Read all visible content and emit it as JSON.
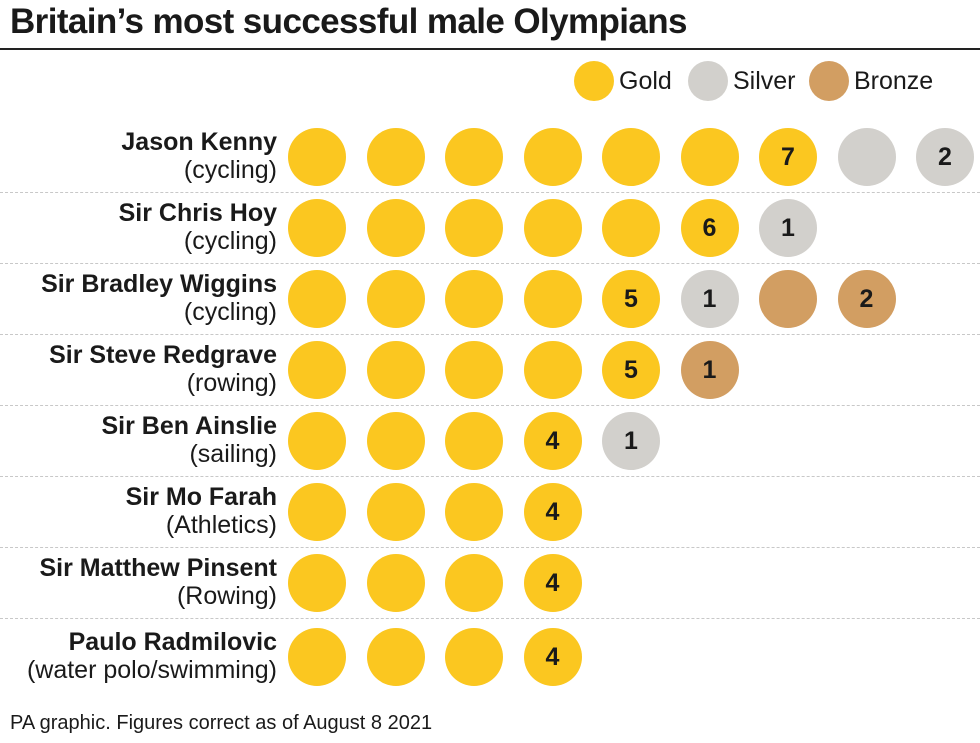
{
  "title": "Britain’s most successful male Olympians",
  "footer": "PA graphic. Figures correct as of August 8 2021",
  "colors": {
    "gold": "#fbc720",
    "silver": "#d2d0cc",
    "bronze": "#d29e62"
  },
  "legend": [
    {
      "key": "gold",
      "label": "Gold"
    },
    {
      "key": "silver",
      "label": "Silver"
    },
    {
      "key": "bronze",
      "label": "Bronze"
    }
  ],
  "chart_data": {
    "type": "table",
    "title": "Britain’s most successful male Olympians",
    "columns": [
      "Gold",
      "Silver",
      "Bronze"
    ],
    "rows": [
      {
        "name": "Jason Kenny",
        "sport": "(cycling)",
        "gold": 7,
        "silver": 2,
        "bronze": 0
      },
      {
        "name": "Sir Chris Hoy",
        "sport": "(cycling)",
        "gold": 6,
        "silver": 1,
        "bronze": 0
      },
      {
        "name": "Sir Bradley Wiggins",
        "sport": "(cycling)",
        "gold": 5,
        "silver": 1,
        "bronze": 2
      },
      {
        "name": "Sir Steve Redgrave",
        "sport": "(rowing)",
        "gold": 5,
        "silver": 0,
        "bronze": 1
      },
      {
        "name": "Sir Ben Ainslie",
        "sport": "(sailing)",
        "gold": 4,
        "silver": 1,
        "bronze": 0
      },
      {
        "name": "Sir Mo Farah",
        "sport": "(Athletics)",
        "gold": 4,
        "silver": 0,
        "bronze": 0
      },
      {
        "name": "Sir Matthew Pinsent",
        "sport": "(Rowing)",
        "gold": 4,
        "silver": 0,
        "bronze": 0
      },
      {
        "name": "Paulo Radmilovic",
        "sport": "(water polo/swimming)",
        "gold": 4,
        "silver": 0,
        "bronze": 0
      }
    ]
  }
}
